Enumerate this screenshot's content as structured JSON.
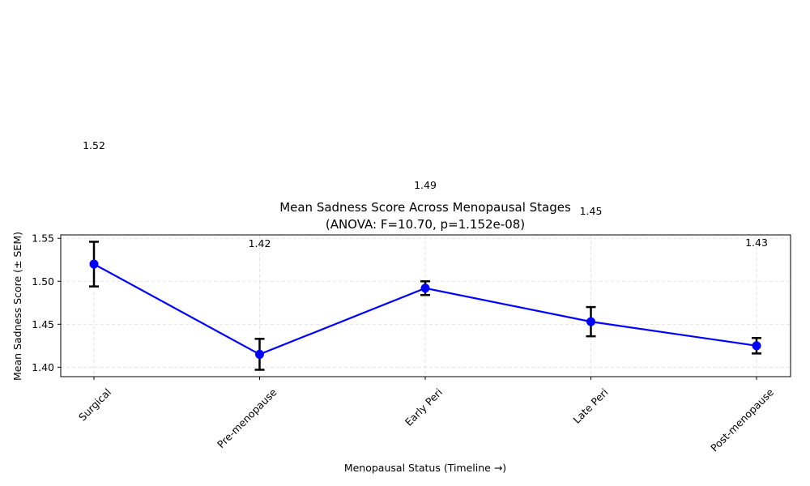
{
  "chart_data": {
    "type": "line",
    "title_line1": "Mean Sadness Score Across Menopausal Stages",
    "title_line2": "(ANOVA: F=10.70, p=1.152e-08)",
    "xlabel": "Menopausal Status (Timeline →)",
    "ylabel": "Mean Sadness Score (± SEM)",
    "categories": [
      "Surgical",
      "Pre-menopause",
      "Early Peri",
      "Late Peri",
      "Post-menopause"
    ],
    "values": [
      1.52,
      1.415,
      1.492,
      1.453,
      1.425
    ],
    "sem": [
      0.026,
      0.018,
      0.008,
      0.017,
      0.009
    ],
    "data_labels": [
      "1.52",
      "1.42",
      "1.49",
      "1.45",
      "1.43"
    ],
    "ylim": [
      1.389,
      1.554
    ],
    "yticks": [
      1.4,
      1.45,
      1.5,
      1.55
    ],
    "ytick_labels": [
      "1.40",
      "1.45",
      "1.50",
      "1.55"
    ],
    "grid": true,
    "colors": {
      "line": "#0000ff",
      "marker": "#0000ff",
      "errorbar": "#000000",
      "grid": "#dddddd"
    }
  }
}
